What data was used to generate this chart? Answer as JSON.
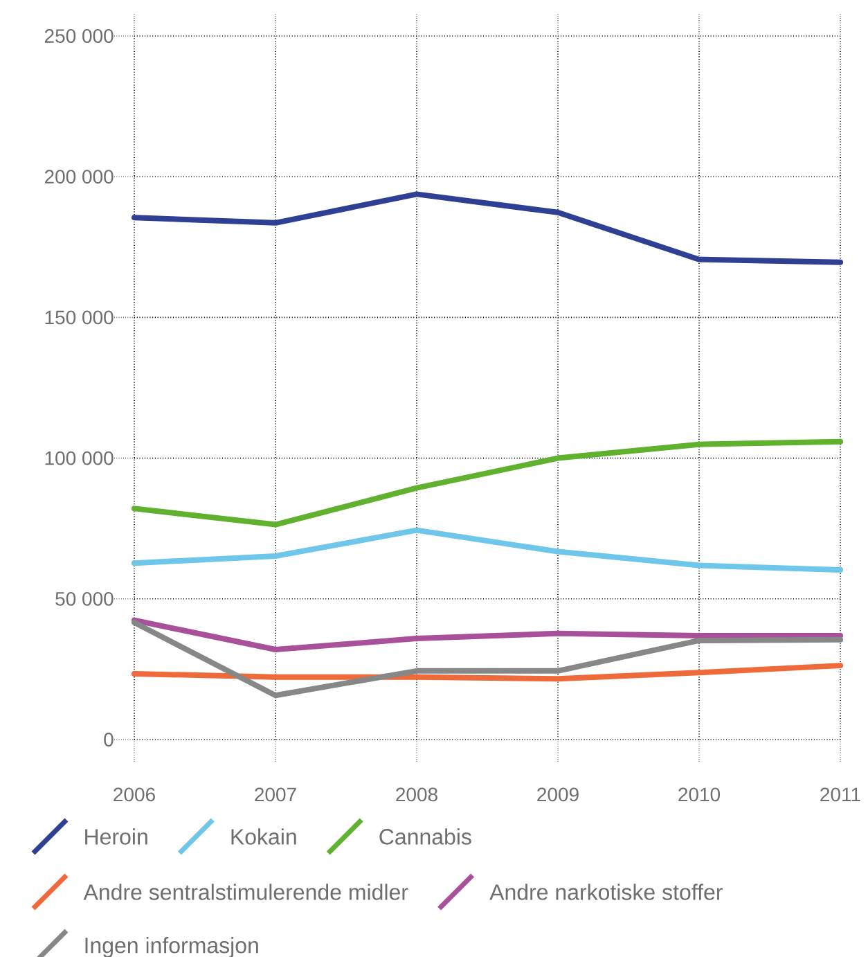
{
  "chart_data": {
    "type": "line",
    "x": [
      2006,
      2007,
      2008,
      2009,
      2010,
      2011
    ],
    "xlim": [
      2006,
      2011
    ],
    "xticks": [
      2006,
      2007,
      2008,
      2009,
      2010,
      2011
    ],
    "ylim": [
      0,
      250000
    ],
    "yticks": [
      0,
      {
        "value": 50000,
        "label": "50 000"
      },
      {
        "value": 100000,
        "label": "100 000"
      },
      {
        "value": 150000,
        "label": "150 000"
      },
      {
        "value": 200000,
        "label": "200 000"
      },
      {
        "value": 250000,
        "label": "250 000"
      }
    ],
    "grid": true,
    "legend": "bottom",
    "series": [
      {
        "name": "Heroin",
        "color": "#2e3f94",
        "values": [
          185500,
          183600,
          193800,
          187300,
          170600,
          169600
        ]
      },
      {
        "name": "Kokain",
        "color": "#6ec6ea",
        "values": [
          62700,
          65200,
          74400,
          66800,
          61900,
          60300
        ]
      },
      {
        "name": "Cannabis",
        "color": "#5fb12e",
        "values": [
          82100,
          76400,
          89400,
          100000,
          104900,
          105900
        ]
      },
      {
        "name": "Andre sentralstimulerende midler",
        "color": "#ef6a3a",
        "values": [
          23400,
          22200,
          22200,
          21600,
          23800,
          26300
        ]
      },
      {
        "name": "Andre narkotiske stoffer",
        "color": "#a8519a",
        "values": [
          42400,
          32000,
          35900,
          37700,
          36900,
          36900
        ]
      },
      {
        "name": "Ingen informasjon",
        "color": "#878787",
        "values": [
          41600,
          15700,
          24400,
          24400,
          35200,
          35500
        ]
      }
    ]
  }
}
